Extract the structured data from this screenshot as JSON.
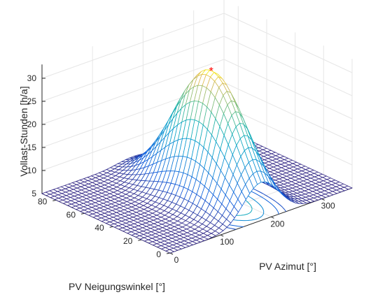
{
  "chart_data": {
    "type": "mesh3d",
    "zlabel": "Vollast-Stunden [h/a]",
    "xlabel": "PV Azimut [°]",
    "ylabel": "PV Neigungswinkel [°]",
    "x_ticks": [
      "0",
      "100",
      "200",
      "300"
    ],
    "y_ticks": [
      "0",
      "20",
      "40",
      "60",
      "80"
    ],
    "z_ticks": [
      "5",
      "10",
      "15",
      "20",
      "25",
      "30"
    ],
    "xlim": [
      0,
      360
    ],
    "ylim": [
      0,
      90
    ],
    "zlim": [
      5,
      33
    ],
    "grid": true,
    "colormap": "parula",
    "surface_model": {
      "description_of_shape": "single peak near azimuth 180°, tilt ~35°",
      "z_min": 5,
      "z_max": 32.5,
      "peak_azimuth": 180,
      "peak_tilt": 35
    },
    "maximum_marker": {
      "azimuth": 180,
      "tilt": 35,
      "value": 32.5,
      "symbol": "*",
      "color": "#ff0000"
    },
    "contour_levels": [
      8,
      10,
      15,
      20,
      25,
      30
    ]
  }
}
